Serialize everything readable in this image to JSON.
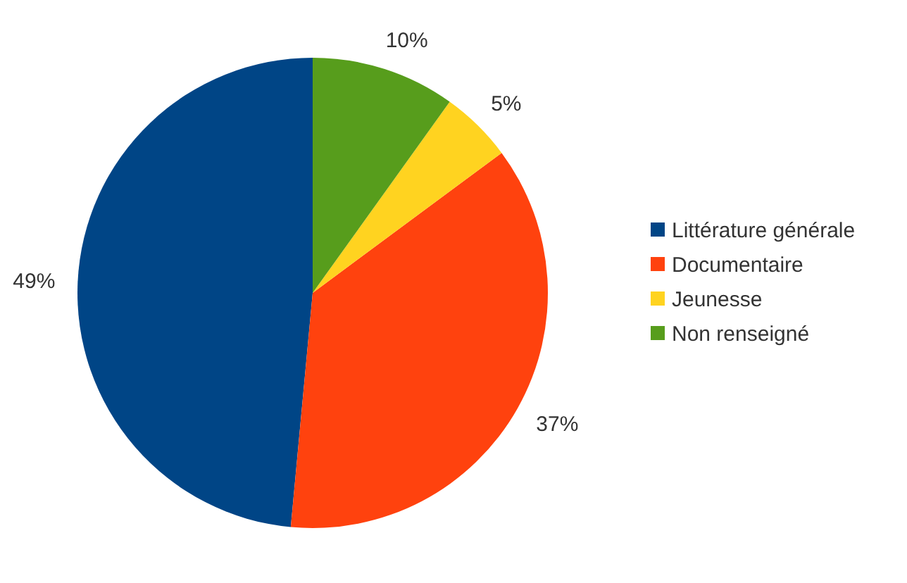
{
  "chart_data": {
    "type": "pie",
    "categories": [
      "Littérature générale",
      "Documentaire",
      "Jeunesse",
      "Non renseigné"
    ],
    "values": [
      49,
      37,
      5,
      10
    ],
    "colors": [
      "#004586",
      "#ff420e",
      "#ffd320",
      "#579d1c"
    ],
    "value_labels": [
      "49%",
      "37%",
      "5%",
      "10%"
    ],
    "legend": "right"
  }
}
